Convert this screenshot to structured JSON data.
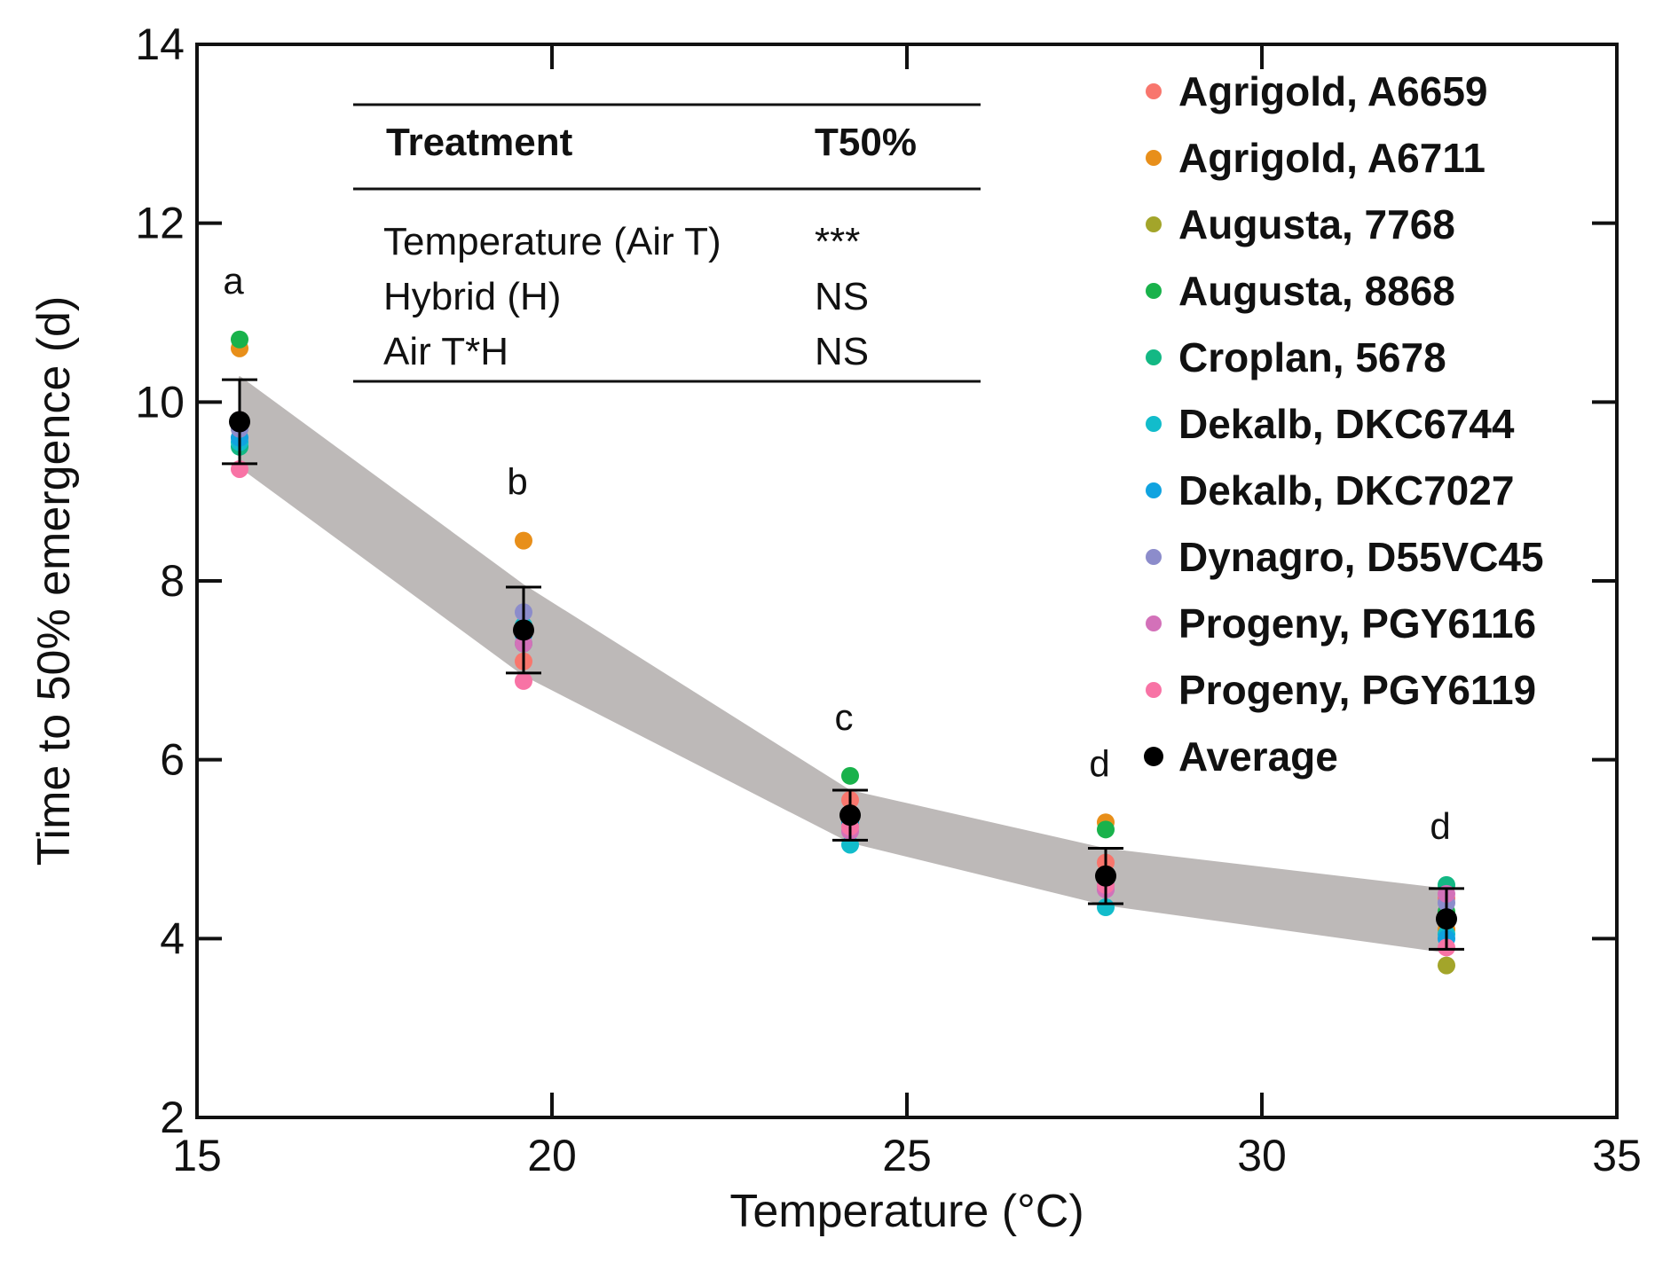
{
  "chart_data": {
    "type": "scatter",
    "xlabel": "Temperature (°C)",
    "ylabel": "Time to 50% emergence (d)",
    "xlim": [
      15,
      35
    ],
    "ylim": [
      2,
      14
    ],
    "xticks": [
      15,
      20,
      25,
      30,
      35
    ],
    "yticks": [
      2,
      4,
      6,
      8,
      10,
      12,
      14
    ],
    "grid": false,
    "legend_position": "top-right",
    "x": [
      15.6,
      19.6,
      24.2,
      27.8,
      32.6
    ],
    "series": [
      {
        "name": "Agrigold, A6659",
        "color": "#f8766d",
        "values": [
          9.6,
          7.1,
          5.55,
          4.85,
          4.45
        ]
      },
      {
        "name": "Agrigold, A6711",
        "color": "#e88f1a",
        "values": [
          10.6,
          8.45,
          5.3,
          5.3,
          4.1
        ]
      },
      {
        "name": "Augusta, 7768",
        "color": "#a3a52a",
        "values": [
          9.7,
          7.45,
          5.35,
          4.7,
          3.7
        ]
      },
      {
        "name": "Augusta, 8868",
        "color": "#19b24b",
        "values": [
          10.7,
          7.5,
          5.82,
          5.22,
          4.3
        ]
      },
      {
        "name": "Croplan, 5678",
        "color": "#13b884",
        "values": [
          9.5,
          7.3,
          5.4,
          4.65,
          4.6
        ]
      },
      {
        "name": "Dekalb, DKC6744",
        "color": "#12bccb",
        "values": [
          9.55,
          7.5,
          5.05,
          4.35,
          4.05
        ]
      },
      {
        "name": "Dekalb, DKC7027",
        "color": "#10a3e0",
        "values": [
          9.6,
          7.4,
          5.3,
          4.6,
          4.0
        ]
      },
      {
        "name": "Dynagro, D55VC45",
        "color": "#8c8ccb",
        "values": [
          9.7,
          7.65,
          5.35,
          4.55,
          4.4
        ]
      },
      {
        "name": "Progeny, PGY6116",
        "color": "#d371b9",
        "values": [
          9.8,
          7.3,
          5.2,
          4.55,
          4.5
        ]
      },
      {
        "name": "Progeny, PGY6119",
        "color": "#f873a5",
        "values": [
          9.25,
          6.88,
          5.25,
          4.6,
          3.9
        ]
      }
    ],
    "average": {
      "name": "Average",
      "color": "#000000",
      "values": [
        9.78,
        7.45,
        5.38,
        4.7,
        4.22
      ],
      "error": [
        0.47,
        0.48,
        0.28,
        0.31,
        0.34
      ]
    },
    "band": {
      "color": "#bdb9b8",
      "upper": [
        10.28,
        7.95,
        5.65,
        5.0,
        4.55
      ],
      "lower": [
        9.28,
        6.95,
        5.08,
        4.38,
        3.85
      ]
    },
    "group_letters": [
      "a",
      "b",
      "c",
      "d",
      "d"
    ],
    "anova_table": {
      "headers": [
        "Treatment",
        "T50%"
      ],
      "rows": [
        [
          "Temperature (Air T)",
          "***"
        ],
        [
          "Hybrid (H)",
          "NS"
        ],
        [
          "Air T*H",
          "NS"
        ]
      ]
    }
  }
}
